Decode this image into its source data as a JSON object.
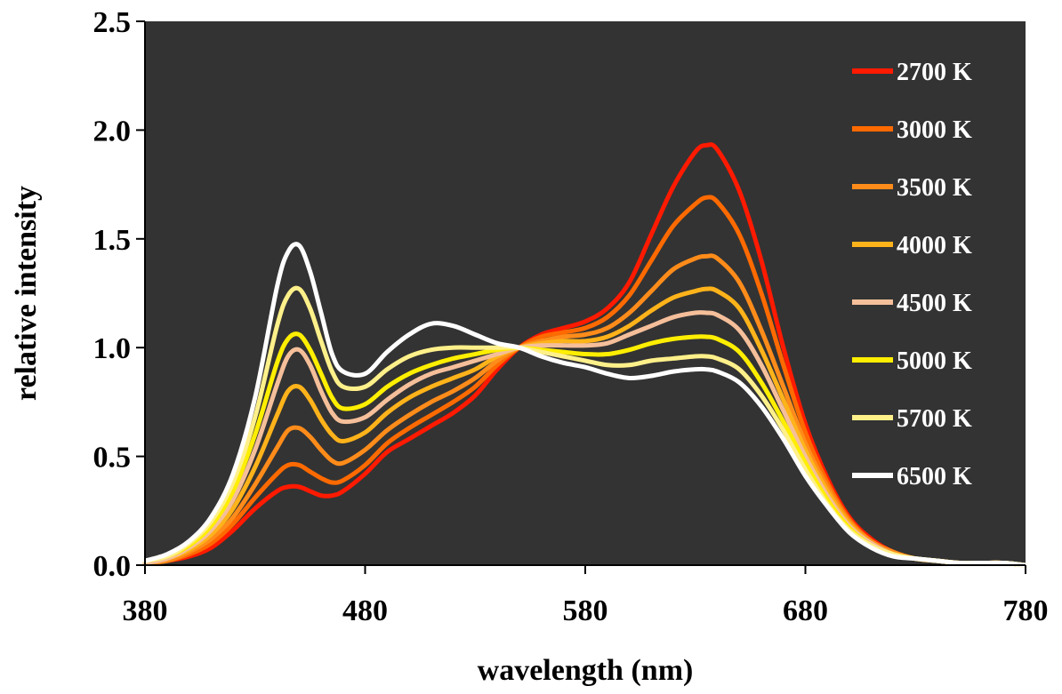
{
  "chart_data": {
    "type": "line",
    "xlabel": "wavelength (nm)",
    "ylabel": "relative intensity",
    "xlim": [
      380,
      780
    ],
    "ylim": [
      0,
      2.5
    ],
    "xticks": [
      "380",
      "480",
      "580",
      "680",
      "780"
    ],
    "yticks": [
      "0.0",
      "0.5",
      "1.0",
      "1.5",
      "2.0",
      "2.5"
    ],
    "plot_background": "#333333",
    "grid": false,
    "legend_position": "top-right",
    "x": [
      380,
      390,
      400,
      410,
      420,
      430,
      440,
      445,
      450,
      455,
      460,
      465,
      470,
      480,
      490,
      500,
      510,
      520,
      530,
      540,
      550,
      560,
      570,
      580,
      590,
      600,
      610,
      620,
      630,
      635,
      640,
      650,
      660,
      670,
      680,
      690,
      700,
      710,
      720,
      730,
      740,
      750,
      760,
      770,
      780
    ],
    "series": [
      {
        "name": "2700 K",
        "color": "#ff1a00",
        "values": [
          0.01,
          0.02,
          0.04,
          0.08,
          0.16,
          0.26,
          0.34,
          0.36,
          0.36,
          0.34,
          0.32,
          0.32,
          0.34,
          0.42,
          0.52,
          0.58,
          0.64,
          0.7,
          0.78,
          0.9,
          1.0,
          1.06,
          1.09,
          1.12,
          1.18,
          1.3,
          1.52,
          1.74,
          1.9,
          1.93,
          1.91,
          1.72,
          1.4,
          1.0,
          0.65,
          0.4,
          0.22,
          0.12,
          0.06,
          0.03,
          0.02,
          0.01,
          0.01,
          0.01,
          0.0
        ]
      },
      {
        "name": "3000 K",
        "color": "#ff6a00",
        "values": [
          0.01,
          0.02,
          0.05,
          0.1,
          0.19,
          0.31,
          0.42,
          0.46,
          0.46,
          0.43,
          0.4,
          0.38,
          0.39,
          0.46,
          0.56,
          0.63,
          0.69,
          0.75,
          0.82,
          0.92,
          1.0,
          1.05,
          1.07,
          1.09,
          1.14,
          1.24,
          1.4,
          1.56,
          1.66,
          1.69,
          1.67,
          1.52,
          1.25,
          0.92,
          0.61,
          0.38,
          0.21,
          0.11,
          0.06,
          0.03,
          0.02,
          0.01,
          0.01,
          0.01,
          0.0
        ]
      },
      {
        "name": "3500 K",
        "color": "#ff8c1a",
        "values": [
          0.01,
          0.02,
          0.06,
          0.12,
          0.22,
          0.37,
          0.54,
          0.62,
          0.63,
          0.59,
          0.53,
          0.48,
          0.47,
          0.53,
          0.62,
          0.69,
          0.75,
          0.8,
          0.86,
          0.94,
          1.0,
          1.03,
          1.05,
          1.06,
          1.09,
          1.16,
          1.26,
          1.36,
          1.41,
          1.42,
          1.41,
          1.3,
          1.08,
          0.82,
          0.56,
          0.36,
          0.2,
          0.11,
          0.06,
          0.03,
          0.02,
          0.01,
          0.01,
          0.01,
          0.0
        ]
      },
      {
        "name": "4000 K",
        "color": "#ffb31a",
        "values": [
          0.01,
          0.03,
          0.07,
          0.14,
          0.26,
          0.45,
          0.69,
          0.8,
          0.82,
          0.76,
          0.67,
          0.6,
          0.57,
          0.61,
          0.7,
          0.77,
          0.82,
          0.86,
          0.9,
          0.96,
          1.0,
          1.02,
          1.03,
          1.03,
          1.05,
          1.1,
          1.17,
          1.23,
          1.26,
          1.27,
          1.26,
          1.18,
          0.99,
          0.76,
          0.53,
          0.34,
          0.19,
          0.1,
          0.05,
          0.03,
          0.02,
          0.01,
          0.01,
          0.01,
          0.0
        ]
      },
      {
        "name": "4500 K",
        "color": "#f5bf9a",
        "values": [
          0.01,
          0.03,
          0.08,
          0.16,
          0.3,
          0.53,
          0.83,
          0.96,
          0.99,
          0.92,
          0.8,
          0.7,
          0.66,
          0.68,
          0.76,
          0.83,
          0.88,
          0.91,
          0.94,
          0.97,
          1.0,
          1.01,
          1.01,
          1.01,
          1.02,
          1.06,
          1.1,
          1.14,
          1.16,
          1.16,
          1.15,
          1.08,
          0.92,
          0.71,
          0.5,
          0.32,
          0.18,
          0.1,
          0.05,
          0.03,
          0.02,
          0.01,
          0.01,
          0.01,
          0.0
        ]
      },
      {
        "name": "5000 K",
        "color": "#ffee00",
        "values": [
          0.02,
          0.04,
          0.09,
          0.18,
          0.34,
          0.6,
          0.93,
          1.04,
          1.06,
          0.99,
          0.88,
          0.77,
          0.72,
          0.74,
          0.82,
          0.88,
          0.92,
          0.95,
          0.97,
          0.99,
          1.0,
          0.99,
          0.98,
          0.97,
          0.97,
          0.99,
          1.02,
          1.04,
          1.05,
          1.05,
          1.04,
          0.98,
          0.84,
          0.66,
          0.47,
          0.3,
          0.17,
          0.09,
          0.05,
          0.03,
          0.02,
          0.01,
          0.01,
          0.01,
          0.0
        ]
      },
      {
        "name": "5700 K",
        "color": "#fff08a",
        "values": [
          0.02,
          0.04,
          0.1,
          0.2,
          0.38,
          0.68,
          1.1,
          1.24,
          1.27,
          1.18,
          1.03,
          0.89,
          0.82,
          0.82,
          0.9,
          0.96,
          0.99,
          1.0,
          1.0,
          1.0,
          1.0,
          0.98,
          0.96,
          0.94,
          0.92,
          0.92,
          0.94,
          0.95,
          0.96,
          0.96,
          0.95,
          0.9,
          0.78,
          0.62,
          0.44,
          0.28,
          0.16,
          0.09,
          0.05,
          0.03,
          0.02,
          0.01,
          0.01,
          0.01,
          0.0
        ]
      },
      {
        "name": "6500 K",
        "color": "#ffffff",
        "values": [
          0.02,
          0.05,
          0.11,
          0.22,
          0.42,
          0.77,
          1.28,
          1.44,
          1.47,
          1.35,
          1.16,
          0.97,
          0.89,
          0.88,
          0.98,
          1.06,
          1.11,
          1.1,
          1.06,
          1.02,
          1.0,
          0.96,
          0.93,
          0.91,
          0.88,
          0.86,
          0.87,
          0.89,
          0.9,
          0.9,
          0.89,
          0.84,
          0.73,
          0.58,
          0.41,
          0.27,
          0.15,
          0.08,
          0.04,
          0.03,
          0.02,
          0.01,
          0.01,
          0.01,
          0.0
        ]
      }
    ]
  }
}
